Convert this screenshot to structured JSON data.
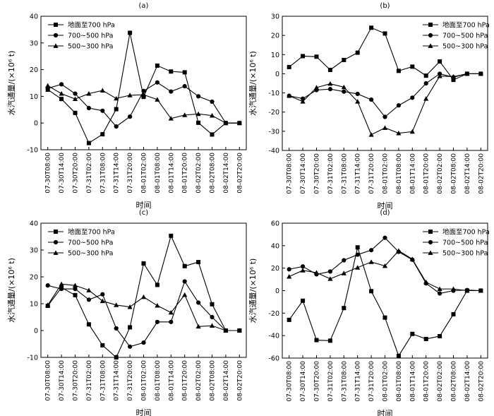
{
  "chart_data": [
    {
      "type": "line",
      "title": "(a)",
      "xlabel": "时间",
      "ylabel": "水汽通量/(×10⁶ t)",
      "ylim": [
        -10,
        40
      ],
      "yticks": [
        -10,
        0,
        10,
        20,
        30,
        40
      ],
      "legend_position": "top-left",
      "categories": [
        "07-30T08:00",
        "07-30T14:00",
        "07-30T20:00",
        "07-31T02:00",
        "07-31T08:00",
        "07-31T14:00",
        "07-31T20:00",
        "08-01T02:00",
        "08-01T08:00",
        "08-01T14:00",
        "08-01T20:00",
        "08-02T02:00",
        "08-02T08:00",
        "08-02T14:00",
        "08-02T20:00"
      ],
      "series": [
        {
          "name": "地面至700 hPa",
          "marker": "square",
          "values": [
            12.5,
            9,
            3.8,
            -7.5,
            -4.2,
            5.2,
            33.8,
            9.8,
            21.5,
            19.3,
            19,
            0.1,
            -4.3,
            0,
            0
          ]
        },
        {
          "name": "700~500 hPa",
          "marker": "circle",
          "values": [
            13,
            14.5,
            11,
            5.6,
            4.6,
            -1.3,
            2.4,
            12,
            15.2,
            11.8,
            13.8,
            10,
            8,
            0,
            0
          ]
        },
        {
          "name": "500~300 hPa",
          "marker": "triangle",
          "values": [
            14,
            11,
            9,
            11,
            12.2,
            9.2,
            10.4,
            10.6,
            8.8,
            1.7,
            3,
            3.4,
            2.8,
            0,
            0
          ]
        }
      ]
    },
    {
      "type": "line",
      "title": "(b)",
      "xlabel": "时间",
      "ylabel": "水汽通量/(×10⁶ t)",
      "ylim": [
        -40,
        30
      ],
      "yticks": [
        -40,
        -30,
        -20,
        -10,
        0,
        10,
        20,
        30
      ],
      "legend_position": "top-right",
      "categories": [
        "07-30T08:00",
        "07-30T14:00",
        "07-30T20:00",
        "07-31T02:00",
        "07-31T08:00",
        "07-31T14:00",
        "07-31T20:00",
        "08-01T02:00",
        "08-01T08:00",
        "08-01T14:00",
        "08-01T20:00",
        "08-02T02:00",
        "08-02T08:00",
        "08-02T14:00",
        "08-02T20:00"
      ],
      "series": [
        {
          "name": "地面至700 hPa",
          "marker": "square",
          "values": [
            3.5,
            9.2,
            8.9,
            2,
            7.2,
            11,
            24,
            21,
            1.5,
            3.7,
            -1,
            6.4,
            -3.2,
            0,
            0
          ]
        },
        {
          "name": "700~500 hPa",
          "marker": "circle",
          "values": [
            -11.5,
            -13,
            -8.5,
            -8,
            -9.3,
            -10.5,
            -13.5,
            -22.5,
            -16.5,
            -12.5,
            -5,
            0,
            -1.8,
            0,
            0
          ]
        },
        {
          "name": "500~300 hPa",
          "marker": "triangle",
          "values": [
            -11.5,
            -14.5,
            -7.2,
            -5.2,
            -7,
            -14.5,
            -31.8,
            -28.2,
            -31,
            -30.2,
            -13,
            -1.2,
            -1.5,
            0,
            0
          ]
        }
      ]
    },
    {
      "type": "line",
      "title": "(c)",
      "xlabel": "时间",
      "ylabel": "水汽通量/(×10⁶ t)",
      "ylim": [
        -10,
        40
      ],
      "yticks": [
        -10,
        0,
        10,
        20,
        30,
        40
      ],
      "legend_position": "top-left",
      "categories": [
        "07-30T08:00",
        "07-30T14:00",
        "07-30T20:00",
        "07-31T02:00",
        "07-31T08:00",
        "07-31T14:00",
        "07-31T20:00",
        "08-01T02:00",
        "08-01T08:00",
        "08-01T14:00",
        "08-01T20:00",
        "08-02T02:00",
        "08-02T08:00",
        "08-02T14:00",
        "08-02T20:00"
      ],
      "series": [
        {
          "name": "地面至700 hPa",
          "marker": "square",
          "values": [
            9.2,
            16,
            13.2,
            2.3,
            -5.5,
            -10,
            1.2,
            25,
            17,
            35.3,
            24,
            25.5,
            9.8,
            0,
            0
          ]
        },
        {
          "name": "700~500 hPa",
          "marker": "circle",
          "values": [
            16.8,
            15.5,
            15.5,
            11.5,
            13.5,
            0.8,
            -6,
            -4.5,
            3.2,
            3.2,
            18.3,
            10.4,
            5,
            0,
            0
          ]
        },
        {
          "name": "500~300 hPa",
          "marker": "triangle",
          "values": [
            9.5,
            17.3,
            16.8,
            15,
            11,
            9.5,
            8.8,
            12.5,
            9.3,
            6.7,
            13.3,
            1.5,
            1.8,
            0,
            0
          ]
        }
      ]
    },
    {
      "type": "line",
      "title": "(d)",
      "xlabel": "时间",
      "ylabel": "水汽通量/(×10⁶ t)",
      "ylim": [
        -60,
        60
      ],
      "yticks": [
        -60,
        -40,
        -20,
        0,
        20,
        40,
        60
      ],
      "legend_position": "top-right",
      "categories": [
        "07-30T08:00",
        "07-30T14:00",
        "07-30T20:00",
        "07-31T02:00",
        "07-31T08:00",
        "07-31T14:00",
        "07-31T20:00",
        "08-01T02:00",
        "08-01T08:00",
        "08-01T14:00",
        "08-01T20:00",
        "08-02T02:00",
        "08-02T08:00",
        "08-02T14:00",
        "08-02T20:00"
      ],
      "series": [
        {
          "name": "地面至700 hPa",
          "marker": "square",
          "values": [
            -26,
            -9,
            -44,
            -44.5,
            -15.5,
            38.5,
            -0.5,
            -24,
            -58,
            -38.5,
            -43,
            -40.5,
            -21,
            0,
            0
          ]
        },
        {
          "name": "700~500 hPa",
          "marker": "circle",
          "values": [
            19,
            21.5,
            14.5,
            17,
            27,
            32,
            36,
            47,
            34.5,
            27.5,
            6.5,
            -2.5,
            0,
            0.5,
            0
          ]
        },
        {
          "name": "500~300 hPa",
          "marker": "triangle",
          "values": [
            12.5,
            18,
            16,
            10.5,
            15.5,
            20.5,
            25.5,
            22,
            35.5,
            28,
            7.5,
            1.5,
            1.5,
            0,
            0
          ]
        }
      ]
    }
  ]
}
